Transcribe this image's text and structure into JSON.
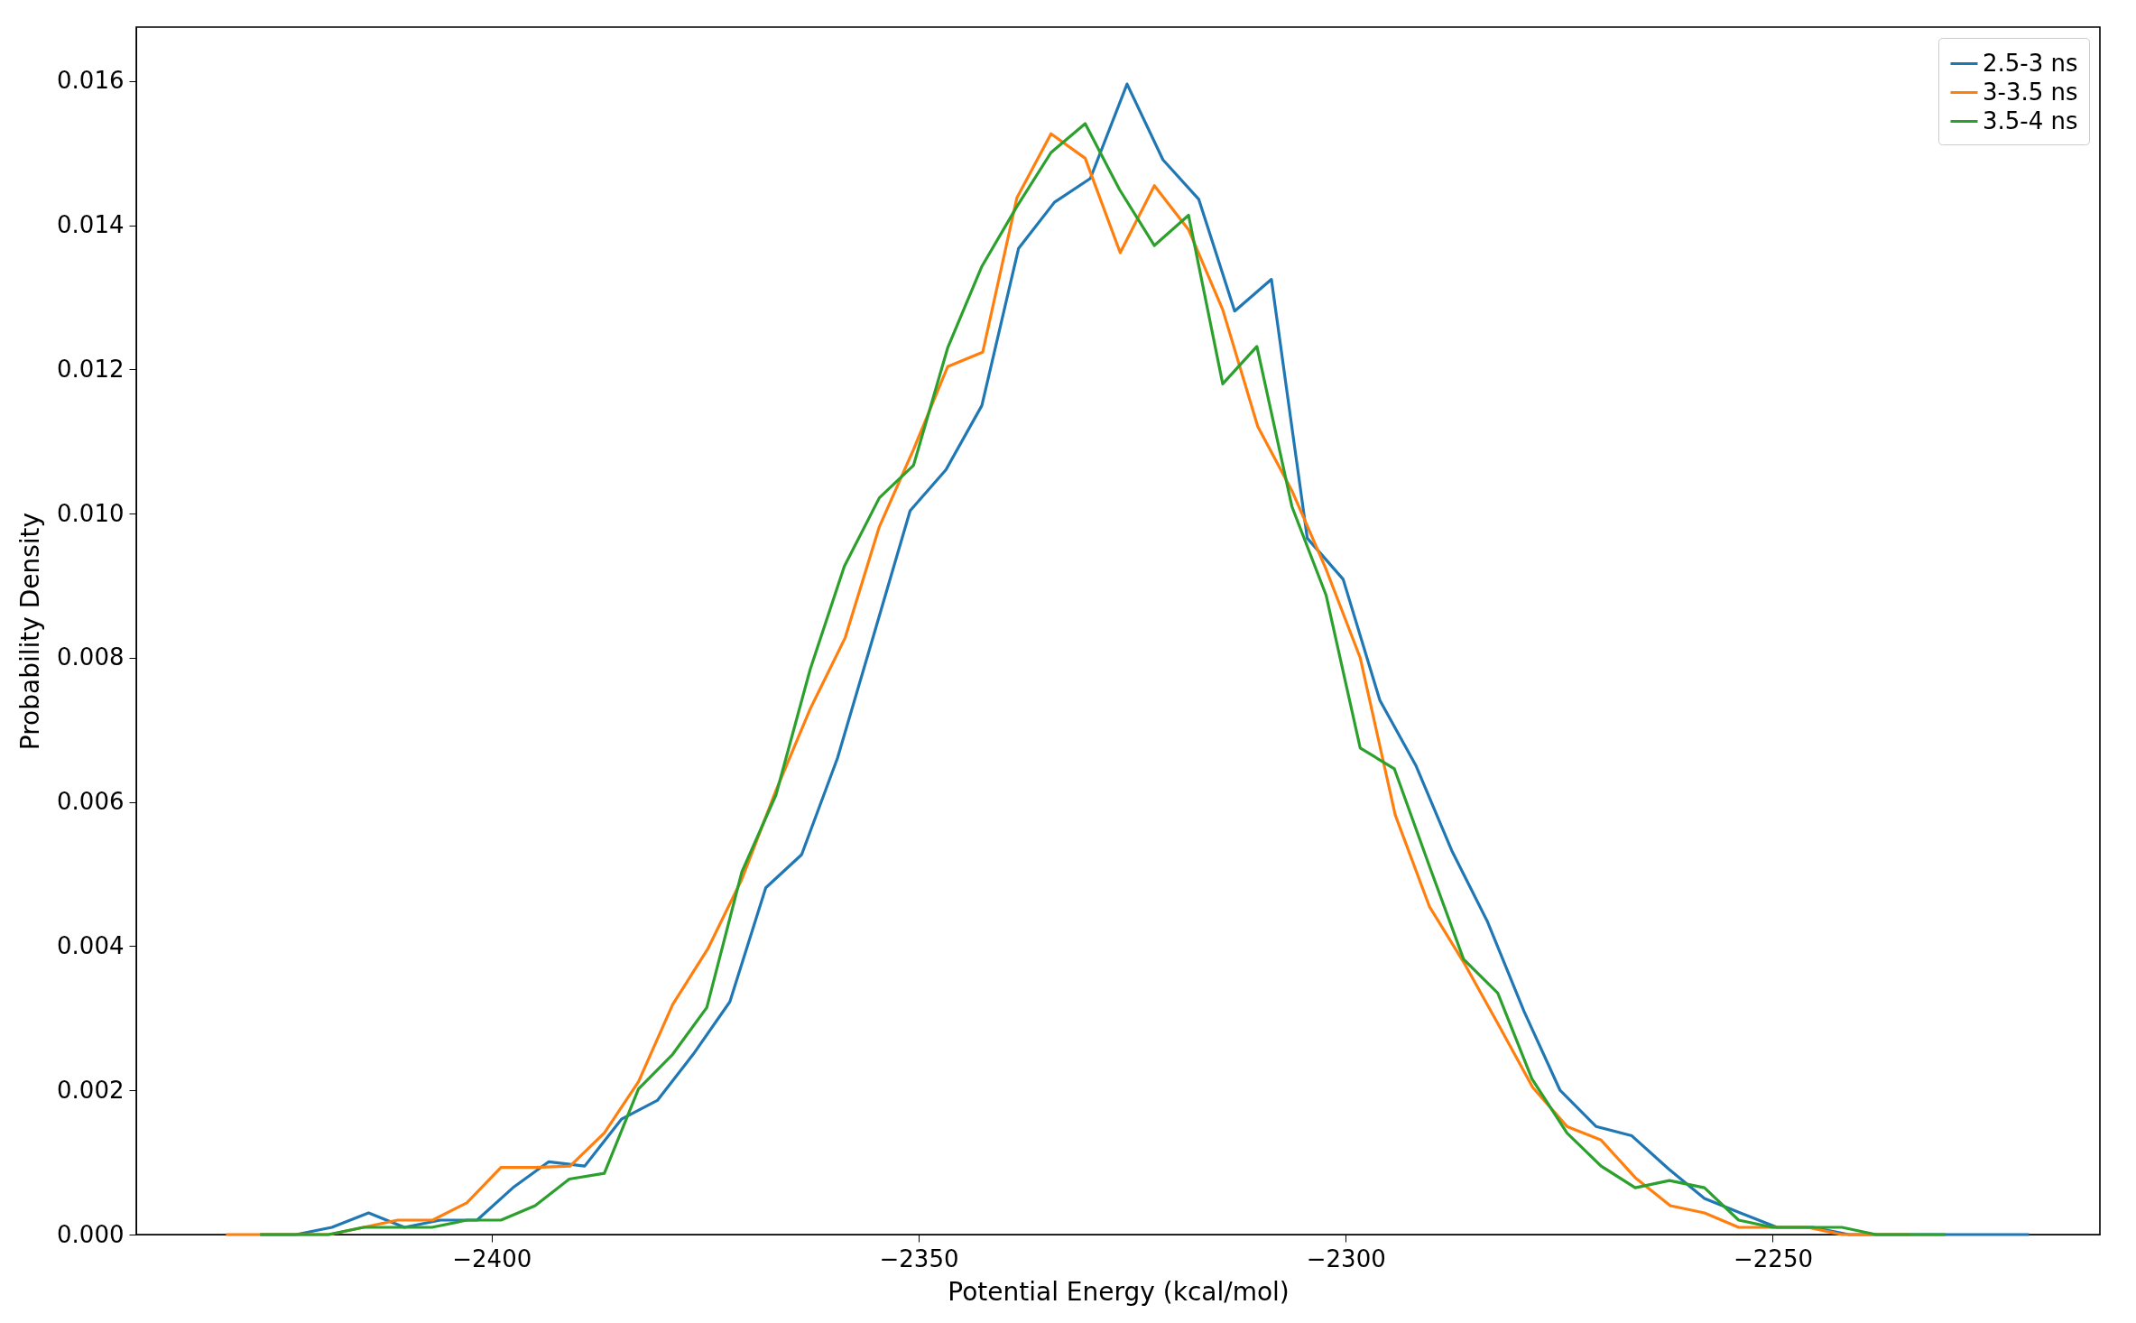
{
  "chart_data": {
    "type": "line",
    "xlabel": "Potential Energy (kcal/mol)",
    "ylabel": "Probability Density",
    "xlim": [
      -2441.6,
      -2211.7
    ],
    "ylim": [
      0,
      0.01675
    ],
    "xticks": [
      {
        "value": -2400,
        "label": "−2400"
      },
      {
        "value": -2350,
        "label": "−2350"
      },
      {
        "value": -2300,
        "label": "−2300"
      },
      {
        "value": -2250,
        "label": "−2250"
      }
    ],
    "yticks": [
      {
        "value": 0,
        "label": "0.000"
      },
      {
        "value": 0.002,
        "label": "0.002"
      },
      {
        "value": 0.004,
        "label": "0.004"
      },
      {
        "value": 0.006,
        "label": "0.006"
      },
      {
        "value": 0.008,
        "label": "0.008"
      },
      {
        "value": 0.01,
        "label": "0.010"
      },
      {
        "value": 0.012,
        "label": "0.012"
      },
      {
        "value": 0.014,
        "label": "0.014"
      },
      {
        "value": 0.016,
        "label": "0.016"
      }
    ],
    "grid": false,
    "legend": "top right",
    "marker": "none",
    "line_style": "solid",
    "series": [
      {
        "name": "2.5-3 ns",
        "color": "#1f77b4",
        "x": [
          -2427.1,
          -2422.9,
          -2418.7,
          -2414.4,
          -2410.2,
          -2406.0,
          -2401.7,
          -2397.5,
          -2393.3,
          -2389.1,
          -2384.8,
          -2380.6,
          -2376.4,
          -2372.1,
          -2367.9,
          -2363.7,
          -2359.5,
          -2355.2,
          -2351.0,
          -2346.8,
          -2342.6,
          -2338.3,
          -2334.1,
          -2329.9,
          -2325.6,
          -2321.4,
          -2317.2,
          -2313.0,
          -2308.7,
          -2304.5,
          -2300.3,
          -2296.0,
          -2291.8,
          -2287.6,
          -2283.4,
          -2279.1,
          -2274.9,
          -2270.7,
          -2266.5,
          -2262.2,
          -2258.0,
          -2253.8,
          -2249.5,
          -2245.3,
          -2241.1,
          -2236.9,
          -2232.6,
          -2228.4,
          -2224.2,
          -2220.0
        ],
        "values": [
          0,
          0,
          0.0001,
          0.0003,
          0.0001,
          0.0002,
          0.0002,
          0.00065,
          0.00101,
          0.00095,
          0.0016,
          0.00186,
          0.0025,
          0.00323,
          0.00481,
          0.00527,
          0.00661,
          0.00834,
          0.01004,
          0.01061,
          0.0115,
          0.01368,
          0.01432,
          0.01465,
          0.01596,
          0.01491,
          0.01436,
          0.01281,
          0.01325,
          0.00966,
          0.00909,
          0.00741,
          0.00651,
          0.00533,
          0.00434,
          0.00309,
          0.002,
          0.0015,
          0.00137,
          0.00091,
          0.0005,
          0.0003,
          0.0001,
          0.0001,
          0,
          0,
          0,
          0,
          0,
          0
        ]
      },
      {
        "name": "3-3.5 ns",
        "color": "#ff7f0e",
        "x": [
          -2431.1,
          -2427.1,
          -2423.1,
          -2419.0,
          -2415.0,
          -2411.0,
          -2406.9,
          -2402.9,
          -2398.9,
          -2394.9,
          -2390.8,
          -2386.8,
          -2382.8,
          -2378.8,
          -2374.7,
          -2370.7,
          -2366.7,
          -2362.7,
          -2358.6,
          -2354.6,
          -2350.6,
          -2346.6,
          -2342.5,
          -2338.5,
          -2334.5,
          -2330.5,
          -2326.4,
          -2322.4,
          -2318.4,
          -2314.4,
          -2310.3,
          -2306.3,
          -2302.3,
          -2298.3,
          -2294.2,
          -2290.2,
          -2286.2,
          -2282.2,
          -2278.1,
          -2274.1,
          -2270.1,
          -2266.1,
          -2262.0,
          -2258.0,
          -2254.0,
          -2250.0,
          -2245.9,
          -2241.9,
          -2237.9,
          -2233.8
        ],
        "values": [
          0,
          0,
          0,
          0,
          0.0001,
          0.0002,
          0.0002,
          0.00044,
          0.00093,
          0.00093,
          0.00095,
          0.00141,
          0.00212,
          0.00319,
          0.00396,
          0.00493,
          0.00616,
          0.00729,
          0.00828,
          0.00982,
          0.01089,
          0.01204,
          0.01224,
          0.01438,
          0.01527,
          0.01493,
          0.01362,
          0.01455,
          0.01394,
          0.01283,
          0.01121,
          0.01032,
          0.00923,
          0.008,
          0.00582,
          0.00455,
          0.00378,
          0.00293,
          0.00204,
          0.0015,
          0.00131,
          0.00079,
          0.0004,
          0.0003,
          0.0001,
          0.0001,
          0.0001,
          0,
          0,
          0
        ]
      },
      {
        "name": "3.5-4 ns",
        "color": "#2ca02c",
        "x": [
          -2427.1,
          -2423.1,
          -2419.1,
          -2415.0,
          -2411.0,
          -2407.0,
          -2402.9,
          -2398.9,
          -2394.9,
          -2390.9,
          -2386.8,
          -2382.8,
          -2378.8,
          -2374.8,
          -2370.7,
          -2366.7,
          -2362.7,
          -2358.7,
          -2354.6,
          -2350.6,
          -2346.6,
          -2342.6,
          -2338.5,
          -2334.5,
          -2330.5,
          -2326.5,
          -2322.4,
          -2318.4,
          -2314.4,
          -2310.4,
          -2306.3,
          -2302.3,
          -2298.3,
          -2294.3,
          -2290.2,
          -2286.2,
          -2282.2,
          -2278.2,
          -2274.1,
          -2270.1,
          -2266.1,
          -2262.1,
          -2258.0,
          -2254.0,
          -2250.0,
          -2246.0,
          -2241.9,
          -2237.9,
          -2233.9,
          -2229.8
        ],
        "values": [
          0,
          0,
          0,
          0.0001,
          0.0001,
          0.0001,
          0.0002,
          0.0002,
          0.0004,
          0.00077,
          0.00085,
          0.00202,
          0.0025,
          0.00315,
          0.00503,
          0.0061,
          0.00784,
          0.00927,
          0.01022,
          0.01067,
          0.0123,
          0.01343,
          0.01426,
          0.01501,
          0.01541,
          0.0145,
          0.01372,
          0.01414,
          0.0118,
          0.01232,
          0.0101,
          0.00887,
          0.00675,
          0.00646,
          0.00511,
          0.00382,
          0.00335,
          0.00216,
          0.00141,
          0.00095,
          0.00065,
          0.00075,
          0.00065,
          0.0002,
          0.0001,
          0.0001,
          0.0001,
          0,
          0,
          0
        ]
      }
    ]
  }
}
